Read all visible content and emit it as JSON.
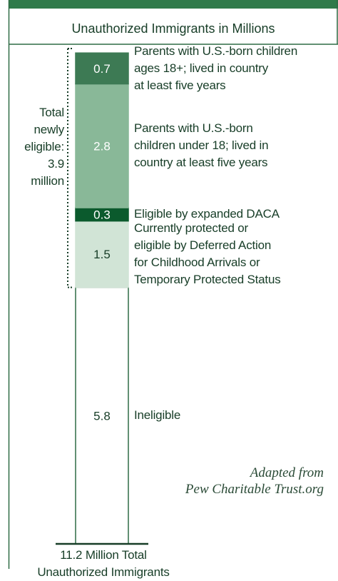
{
  "chart_data": {
    "type": "stacked-bar",
    "title": "Unauthorized Immigrants in Millions",
    "ylim": [
      0,
      11.2
    ],
    "series": [
      {
        "name": [
          "Ineligible"
        ],
        "color": "#ffffff",
        "values": [
          5.8
        ]
      },
      {
        "name": [
          "Currently protected or",
          "eligible by Deferred Action",
          "for Childhood Arrivals or",
          "Temporary Protected Status"
        ],
        "color": "#d1e4d6",
        "values": [
          1.5
        ]
      },
      {
        "name": [
          "Eligible by expanded DACA"
        ],
        "color": "#0b5a2d",
        "values": [
          0.3
        ]
      },
      {
        "name": [
          "Parents with U.S.-born",
          "children under 18; lived in",
          "country at least five years"
        ],
        "color": "#89b898",
        "values": [
          2.8
        ]
      },
      {
        "name": [
          "Parents with U.S.-born children",
          "ages 18+; lived in country",
          "at least five years"
        ],
        "color": "#3d7a54",
        "values": [
          0.7
        ]
      }
    ],
    "annotation": [
      "Total",
      "newly",
      "eligible:",
      "3.9",
      "million"
    ],
    "x_label": [
      "11.2 Million Total",
      "Unauthorized Immigrants"
    ],
    "source": [
      "Adapted from",
      "Pew Charitable Trust.org"
    ]
  }
}
